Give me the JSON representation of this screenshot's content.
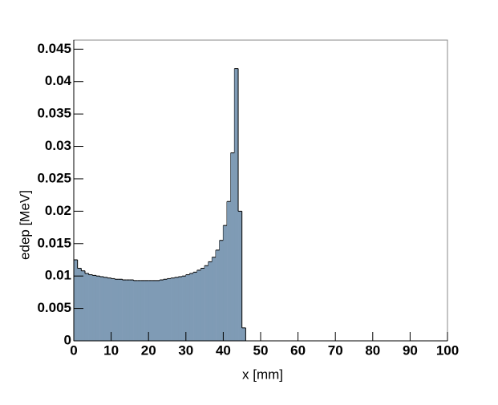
{
  "chart_data": {
    "type": "histogram",
    "x_label": "x [mm]",
    "y_label": "edep [MeV]",
    "bins": [
      0,
      1,
      2,
      3,
      4,
      5,
      6,
      7,
      8,
      9,
      10,
      11,
      12,
      13,
      14,
      15,
      16,
      17,
      18,
      19,
      20,
      21,
      22,
      23,
      24,
      25,
      26,
      27,
      28,
      29,
      30,
      31,
      32,
      33,
      34,
      35,
      36,
      37,
      38,
      39,
      40,
      41,
      42,
      43,
      44,
      45,
      46,
      47,
      48,
      49,
      50,
      51,
      52,
      53,
      54,
      55,
      56,
      57,
      58,
      59,
      60,
      61,
      62,
      63,
      64,
      65,
      66,
      67,
      68,
      69,
      70,
      71,
      72,
      73,
      74,
      75,
      76,
      77,
      78,
      79,
      80,
      81,
      82,
      83,
      84,
      85,
      86,
      87,
      88,
      89,
      90,
      91,
      92,
      93,
      94,
      95,
      96,
      97,
      98,
      99,
      100
    ],
    "values": [
      0.0125,
      0.0112,
      0.0108,
      0.0104,
      0.0102,
      0.0101,
      0.01,
      0.0099,
      0.0098,
      0.0097,
      0.0096,
      0.0095,
      0.0095,
      0.0094,
      0.0094,
      0.0094,
      0.0093,
      0.0093,
      0.0093,
      0.0093,
      0.0093,
      0.0093,
      0.0093,
      0.0094,
      0.0095,
      0.0096,
      0.0097,
      0.0098,
      0.0099,
      0.01,
      0.0102,
      0.0104,
      0.0106,
      0.0109,
      0.0112,
      0.0116,
      0.0122,
      0.0129,
      0.014,
      0.0155,
      0.0178,
      0.0215,
      0.029,
      0.042,
      0.02,
      0.002,
      0,
      0,
      0,
      0,
      0,
      0,
      0,
      0,
      0,
      0,
      0,
      0,
      0,
      0,
      0,
      0,
      0,
      0,
      0,
      0,
      0,
      0,
      0,
      0,
      0,
      0,
      0,
      0,
      0,
      0,
      0,
      0,
      0,
      0,
      0,
      0,
      0,
      0,
      0,
      0,
      0,
      0,
      0,
      0,
      0,
      0,
      0,
      0,
      0,
      0,
      0,
      0,
      0,
      0
    ],
    "color": "#7f9bb5",
    "xlim": [
      0,
      100
    ],
    "xticks": [
      0,
      10,
      20,
      30,
      40,
      50,
      60,
      70,
      80,
      90,
      100
    ],
    "ylim": [
      0,
      0.0464
    ],
    "yticks": [
      0,
      0.005,
      0.01,
      0.015,
      0.02,
      0.025,
      0.03,
      0.035,
      0.04,
      0.045
    ]
  }
}
